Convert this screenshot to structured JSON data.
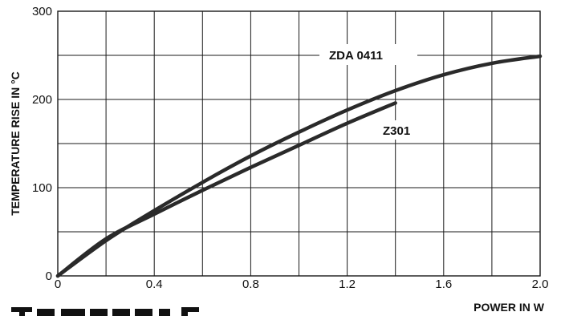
{
  "chart_data": {
    "type": "line",
    "xlabel": "POWER IN W",
    "ylabel": "TEMPERATURE RISE IN °C",
    "xlim": [
      0,
      2.0
    ],
    "ylim": [
      0,
      300
    ],
    "x_ticks": [
      "0",
      "0.4",
      "0.8",
      "1.2",
      "1.6",
      "2.0"
    ],
    "y_ticks": [
      "0",
      "100",
      "200",
      "300"
    ],
    "grid": true,
    "series": [
      {
        "name": "ZDA 0411",
        "x": [
          0,
          0.2,
          0.4,
          0.6,
          0.8,
          1.0,
          1.2,
          1.4,
          1.6,
          1.8,
          2.0
        ],
        "y": [
          0,
          40,
          74,
          106,
          136,
          163,
          188,
          210,
          228,
          241,
          249
        ]
      },
      {
        "name": "Z301",
        "x": [
          0,
          0.2,
          0.4,
          0.6,
          0.8,
          1.0,
          1.2,
          1.4
        ],
        "y": [
          0,
          42,
          70,
          97,
          123,
          148,
          173,
          196
        ]
      }
    ]
  }
}
